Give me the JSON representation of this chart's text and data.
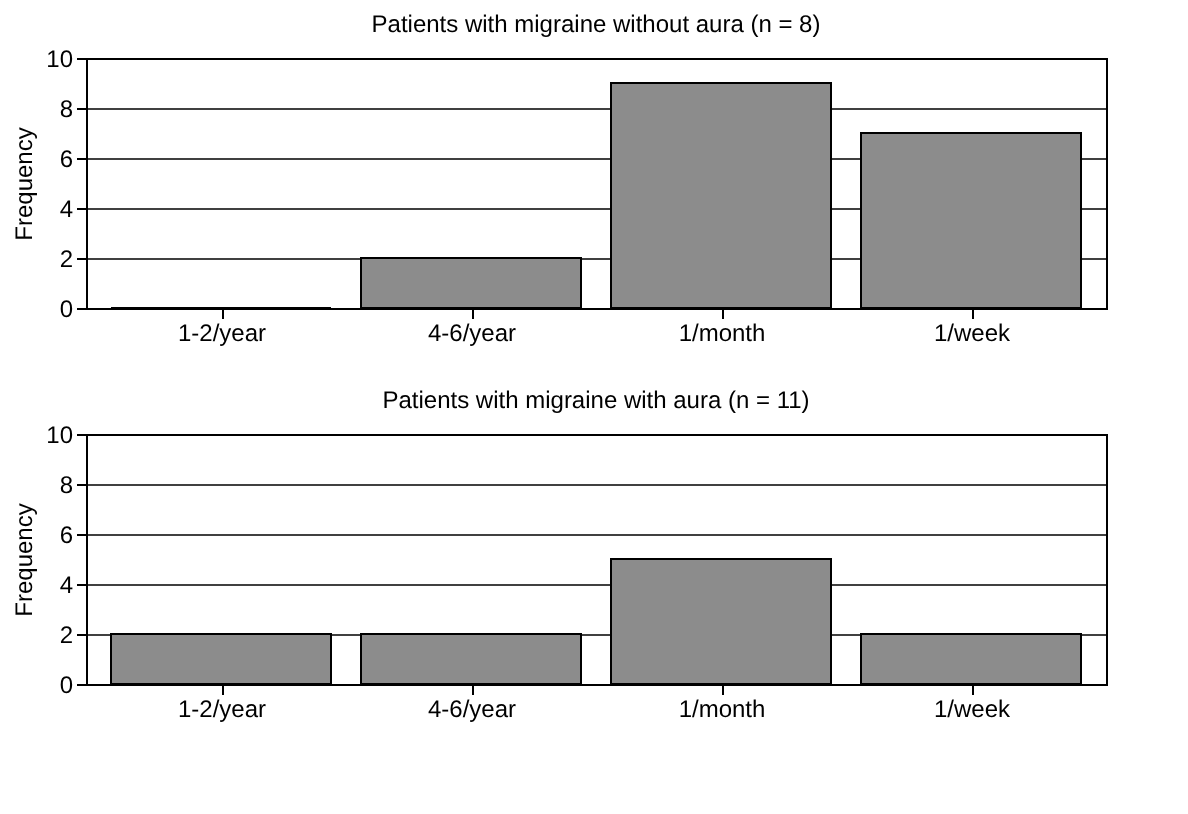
{
  "chart_data": [
    {
      "type": "bar",
      "title": "Patients with migraine without aura (n = 8)",
      "ylabel": "Frequency",
      "categories": [
        "1-2/year",
        "4-6/year",
        "1/month",
        "1/week"
      ],
      "values": [
        0,
        2,
        9,
        7
      ],
      "color": "#8c8c8c",
      "ylim": [
        0,
        10
      ],
      "yticks": [
        0,
        2,
        4,
        6,
        8,
        10
      ],
      "grid": "y"
    },
    {
      "type": "bar",
      "title": "Patients with migraine with aura (n = 11)",
      "ylabel": "Frequency",
      "categories": [
        "1-2/year",
        "4-6/year",
        "1/month",
        "1/week"
      ],
      "values": [
        2,
        2,
        5,
        2
      ],
      "color": "#8c8c8c",
      "ylim": [
        0,
        10
      ],
      "yticks": [
        0,
        2,
        4,
        6,
        8,
        10
      ],
      "grid": "y"
    }
  ]
}
